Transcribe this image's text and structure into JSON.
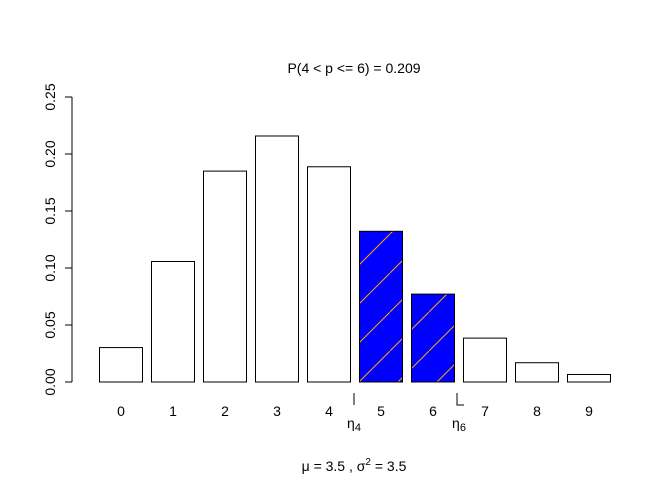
{
  "chart_data": {
    "type": "bar",
    "title": "P(4  <  p  <=  6) = 0.209",
    "subtitle": "μ = 3.5 ,  σ² = 3.5",
    "subtitle_parts": {
      "mu": "μ = 3.5 ,  ",
      "sigma": "σ",
      "sup": "2",
      "rest": " = 3.5"
    },
    "categories": [
      "0",
      "1",
      "2",
      "3",
      "4",
      "5",
      "6",
      "7",
      "8",
      "9"
    ],
    "values": [
      0.0302,
      0.1057,
      0.185,
      0.2158,
      0.1888,
      0.1322,
      0.0771,
      0.0385,
      0.0169,
      0.0066
    ],
    "highlighted": [
      "5",
      "6"
    ],
    "ylim": [
      0,
      0.25
    ],
    "yticks": [
      "0.00",
      "0.05",
      "0.10",
      "0.15",
      "0.20",
      "0.25"
    ],
    "markers": [
      {
        "label": "η",
        "sub": "4",
        "at": 4.5
      },
      {
        "label": "η",
        "sub": "6",
        "at": 6.5
      }
    ],
    "grid": false,
    "colors": {
      "highlight_fill": "#0000FF",
      "hatch": "#FFA500",
      "bar_fill": "#FFFFFF",
      "stroke": "#000000"
    }
  }
}
